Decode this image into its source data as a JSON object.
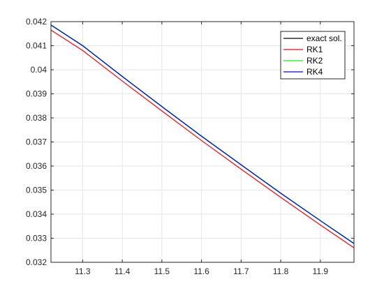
{
  "chart_data": {
    "type": "line",
    "title": "",
    "xlabel": "",
    "ylabel": "",
    "xlim": [
      11.22,
      11.985
    ],
    "ylim": [
      0.032,
      0.042
    ],
    "grid": true,
    "legend_position": "top-right",
    "x_ticks": [
      {
        "value": 11.3,
        "label": "11.3"
      },
      {
        "value": 11.4,
        "label": "11.4"
      },
      {
        "value": 11.5,
        "label": "11.5"
      },
      {
        "value": 11.6,
        "label": "11.6"
      },
      {
        "value": 11.7,
        "label": "11.7"
      },
      {
        "value": 11.8,
        "label": "11.8"
      },
      {
        "value": 11.9,
        "label": "11.9"
      }
    ],
    "y_ticks": [
      {
        "value": 0.032,
        "label": "0.032"
      },
      {
        "value": 0.033,
        "label": "0.033"
      },
      {
        "value": 0.034,
        "label": "0.034"
      },
      {
        "value": 0.035,
        "label": "0.035"
      },
      {
        "value": 0.036,
        "label": "0.036"
      },
      {
        "value": 0.037,
        "label": "0.037"
      },
      {
        "value": 0.038,
        "label": "0.038"
      },
      {
        "value": 0.039,
        "label": "0.039"
      },
      {
        "value": 0.04,
        "label": "0.04"
      },
      {
        "value": 0.041,
        "label": "0.041"
      },
      {
        "value": 0.042,
        "label": "0.042"
      }
    ],
    "x": [
      11.22,
      11.3,
      11.4,
      11.5,
      11.6,
      11.7,
      11.8,
      11.9,
      11.985
    ],
    "series": [
      {
        "name": "exact sol.",
        "color": "#000000",
        "values": [
          0.04186,
          0.041,
          0.03972,
          0.03847,
          0.03724,
          0.03605,
          0.03487,
          0.03373,
          0.03278
        ]
      },
      {
        "name": "RK1",
        "color": "#ff0000",
        "values": [
          0.04165,
          0.0408,
          0.03953,
          0.03829,
          0.03706,
          0.03587,
          0.0347,
          0.03355,
          0.0326
        ]
      },
      {
        "name": "RK2",
        "color": "#00ff00",
        "values": [
          0.04187,
          0.04101,
          0.03973,
          0.03848,
          0.03725,
          0.03606,
          0.03488,
          0.03374,
          0.03279
        ]
      },
      {
        "name": "RK4",
        "color": "#0000ff",
        "values": [
          0.04186,
          0.041,
          0.03972,
          0.03847,
          0.03724,
          0.03605,
          0.03487,
          0.03373,
          0.03278
        ]
      }
    ]
  }
}
